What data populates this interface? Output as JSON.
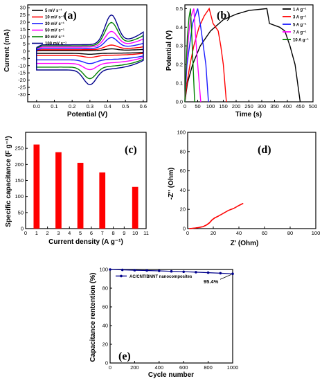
{
  "chart_data": [
    {
      "panel": "(a)",
      "type": "line",
      "xlabel": "Potential (V)",
      "ylabel": "Current (mA)",
      "xlim": [
        -0.05,
        0.62
      ],
      "ylim": [
        -35,
        32
      ],
      "xticks": [
        "0.0",
        "0.1",
        "0.2",
        "0.3",
        "0.4",
        "0.5",
        "0.6"
      ],
      "yticks": [
        "-30",
        "-25",
        "-20",
        "-15",
        "-10",
        "-5",
        "0",
        "5",
        "10",
        "15",
        "20",
        "25",
        "30"
      ],
      "legend_position": "top-left",
      "series": [
        {
          "name": "5 mV s⁻¹",
          "color": "#000000",
          "upper_base": 1,
          "lower_base": -1.5,
          "anodic_peak": 1.5,
          "cathodic_peak": -2
        },
        {
          "name": "10 mV s⁻¹",
          "color": "#ff0000",
          "upper_base": 2.5,
          "lower_base": -3,
          "anodic_peak": 4,
          "cathodic_peak": -4
        },
        {
          "name": "30 mV s⁻¹",
          "color": "#1a1aff",
          "upper_base": 4.5,
          "lower_base": -6,
          "anodic_peak": 9,
          "cathodic_peak": -8
        },
        {
          "name": "50 mV s⁻¹",
          "color": "#ff00ff",
          "upper_base": 7,
          "lower_base": -8.5,
          "anodic_peak": 13,
          "cathodic_peak": -12
        },
        {
          "name": "80 mV s⁻¹",
          "color": "#008000",
          "upper_base": 9,
          "lower_base": -11,
          "anodic_peak": 19,
          "cathodic_peak": -18
        },
        {
          "name": "100 mV s⁻¹",
          "color": "#00008b",
          "upper_base": 11,
          "lower_base": -13,
          "anodic_peak": 24,
          "cathodic_peak": -22
        }
      ]
    },
    {
      "panel": "(b)",
      "type": "line",
      "xlabel": "Time (s)",
      "ylabel": "Potential (V)",
      "xlim": [
        0,
        500
      ],
      "ylim": [
        0,
        0.52
      ],
      "xticks": [
        "0",
        "50",
        "100",
        "150",
        "200",
        "250",
        "300",
        "350",
        "400",
        "450",
        "500"
      ],
      "yticks": [
        "0.0",
        "0.1",
        "0.2",
        "0.3",
        "0.4",
        "0.5"
      ],
      "legend_position": "top-right",
      "series": [
        {
          "name": "1 A g⁻¹",
          "color": "#000000",
          "points": [
            [
              0,
              0
            ],
            [
              10,
              0.1
            ],
            [
              30,
              0.2
            ],
            [
              60,
              0.3
            ],
            [
              100,
              0.38
            ],
            [
              150,
              0.44
            ],
            [
              200,
              0.47
            ],
            [
              250,
              0.49
            ],
            [
              320,
              0.5
            ],
            [
              330,
              0.42
            ],
            [
              370,
              0.4
            ],
            [
              390,
              0.38
            ],
            [
              410,
              0.3
            ],
            [
              430,
              0.2
            ],
            [
              450,
              0
            ]
          ]
        },
        {
          "name": "3 A g⁻¹",
          "color": "#ff0000",
          "points": [
            [
              0,
              0
            ],
            [
              8,
              0.1
            ],
            [
              20,
              0.2
            ],
            [
              35,
              0.3
            ],
            [
              55,
              0.4
            ],
            [
              75,
              0.46
            ],
            [
              95,
              0.5
            ],
            [
              110,
              0.42
            ],
            [
              130,
              0.38
            ],
            [
              140,
              0.3
            ],
            [
              150,
              0.2
            ],
            [
              162,
              0
            ]
          ]
        },
        {
          "name": "5 A g⁻¹",
          "color": "#1a1aff",
          "points": [
            [
              0,
              0
            ],
            [
              8,
              0.2
            ],
            [
              18,
              0.3
            ],
            [
              30,
              0.42
            ],
            [
              50,
              0.5
            ],
            [
              62,
              0.4
            ],
            [
              72,
              0.3
            ],
            [
              82,
              0.2
            ],
            [
              92,
              0
            ]
          ]
        },
        {
          "name": "7 A g⁻¹",
          "color": "#ff00ff",
          "points": [
            [
              0,
              0
            ],
            [
              6,
              0.2
            ],
            [
              14,
              0.35
            ],
            [
              22,
              0.45
            ],
            [
              35,
              0.5
            ],
            [
              42,
              0.35
            ],
            [
              50,
              0.2
            ],
            [
              62,
              0
            ]
          ]
        },
        {
          "name": "10 A g⁻¹",
          "color": "#008000",
          "points": [
            [
              0,
              0
            ],
            [
              5,
              0.2
            ],
            [
              10,
              0.35
            ],
            [
              16,
              0.45
            ],
            [
              22,
              0.5
            ],
            [
              27,
              0.35
            ],
            [
              32,
              0.2
            ],
            [
              38,
              0
            ]
          ]
        }
      ]
    },
    {
      "panel": "(c)",
      "type": "bar",
      "xlabel": "Current density (A g⁻¹)",
      "ylabel": "Specific capacitance (F g⁻¹)",
      "xlim": [
        0,
        11
      ],
      "ylim": [
        0,
        300
      ],
      "xticks": [
        "0",
        "1",
        "2",
        "3",
        "4",
        "5",
        "6",
        "7",
        "8",
        "9",
        "10",
        "11"
      ],
      "yticks": [
        "0",
        "50",
        "100",
        "150",
        "200",
        "250"
      ],
      "x": [
        1,
        3,
        5,
        7,
        10
      ],
      "values": [
        262,
        238,
        205,
        175,
        130
      ],
      "color": "#ff0000"
    },
    {
      "panel": "(d)",
      "type": "line",
      "xlabel": "Z' (Ohm)",
      "ylabel": "-Z'' (Ohm)",
      "xlim": [
        0,
        100
      ],
      "ylim": [
        0,
        100
      ],
      "xticks": [
        "0",
        "20",
        "40",
        "60",
        "80",
        "100"
      ],
      "yticks": [
        "0",
        "20",
        "40",
        "60",
        "80",
        "100"
      ],
      "series": [
        {
          "color": "#ff0000",
          "points": [
            [
              1.5,
              0
            ],
            [
              4,
              0.3
            ],
            [
              8,
              1
            ],
            [
              12,
              2
            ],
            [
              15,
              4
            ],
            [
              17,
              6
            ],
            [
              19,
              9
            ],
            [
              21,
              11
            ],
            [
              24,
              13
            ],
            [
              28,
              16
            ],
            [
              32,
              19
            ],
            [
              36,
              21
            ],
            [
              40,
              24
            ],
            [
              43,
              26
            ]
          ]
        }
      ]
    },
    {
      "panel": "(e)",
      "type": "line",
      "xlabel": "Cycle number",
      "ylabel": "Capacitance rentention (%)",
      "xlim": [
        0,
        1000
      ],
      "ylim": [
        0,
        100
      ],
      "xticks": [
        "0",
        "200",
        "400",
        "600",
        "800",
        "1000"
      ],
      "yticks": [
        "0",
        "20",
        "40",
        "60",
        "80",
        "100"
      ],
      "legend_position": "top-left",
      "series": [
        {
          "name": "AC/CNT/BNNT nanocomposites",
          "color": "#00008b",
          "x": [
            0,
            100,
            200,
            300,
            400,
            500,
            600,
            700,
            800,
            900,
            1000
          ],
          "values": [
            100,
            99.6,
            99.2,
            98.9,
            98.5,
            98,
            97.6,
            97.1,
            96.6,
            96,
            95.4
          ]
        }
      ],
      "annotation": "95.4%"
    }
  ]
}
